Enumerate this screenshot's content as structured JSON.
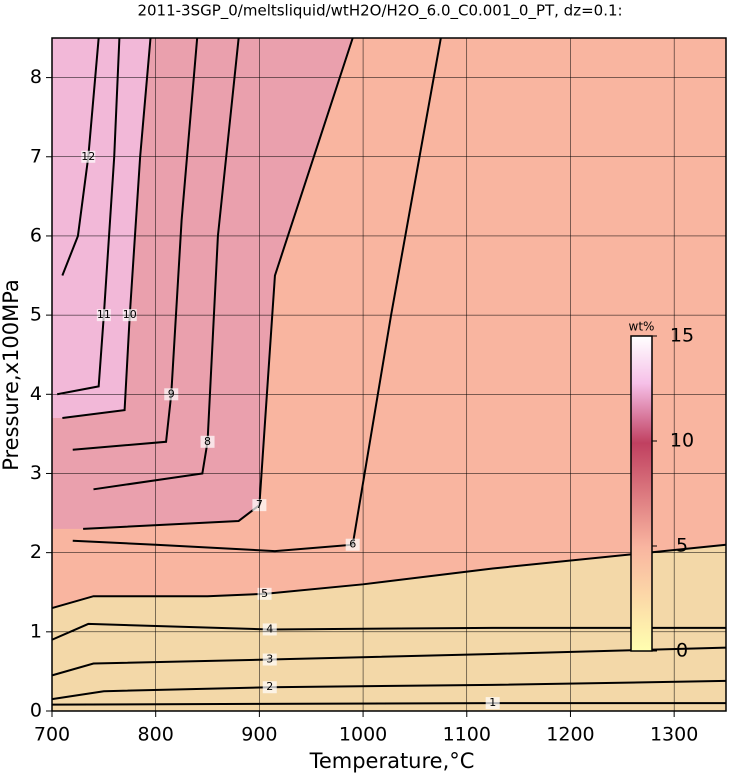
{
  "chart_data": {
    "type": "contour",
    "title": "2011-3SGP_0/meltsliquid/wtH2O/H2O_6.0_C0.001_0_PT, dz=0.1:",
    "x_label": "Temperature,°C",
    "y_label": "Pressure,x100MPa",
    "xlim": [
      700,
      1350
    ],
    "ylim": [
      0,
      8.5
    ],
    "xticks": [
      700,
      800,
      900,
      1000,
      1100,
      1200,
      1300
    ],
    "yticks": [
      0,
      1,
      2,
      3,
      4,
      5,
      6,
      7,
      8
    ],
    "grid": true,
    "contours": [
      {
        "level": 1,
        "x": [
          700,
          900,
          1125,
          1350
        ],
        "y": [
          0.08,
          0.09,
          0.1,
          0.1
        ]
      },
      {
        "level": 2,
        "x": [
          700,
          750,
          910,
          1125,
          1350
        ],
        "y": [
          0.15,
          0.25,
          0.3,
          0.33,
          0.38
        ]
      },
      {
        "level": 3,
        "x": [
          700,
          740,
          910,
          1125,
          1350
        ],
        "y": [
          0.45,
          0.6,
          0.65,
          0.72,
          0.8
        ]
      },
      {
        "level": 4,
        "x": [
          700,
          735,
          910,
          1125,
          1350
        ],
        "y": [
          0.9,
          1.1,
          1.03,
          1.05,
          1.05
        ]
      },
      {
        "level": 5,
        "x": [
          700,
          740,
          850,
          905,
          1000,
          1125,
          1350
        ],
        "y": [
          1.3,
          1.45,
          1.45,
          1.48,
          1.6,
          1.8,
          2.1
        ]
      },
      {
        "level": 6,
        "x": [
          720,
          800,
          915,
          990,
          1027,
          1075
        ],
        "y": [
          2.15,
          2.1,
          2.02,
          2.1,
          5.0,
          8.5
        ]
      },
      {
        "level": 7,
        "x": [
          730,
          880,
          900,
          915,
          990
        ],
        "y": [
          2.3,
          2.4,
          2.6,
          5.5,
          8.5
        ]
      },
      {
        "level": 8,
        "x": [
          740,
          845,
          850,
          860,
          880
        ],
        "y": [
          2.8,
          3.0,
          3.4,
          6.0,
          8.5
        ]
      },
      {
        "level": 9,
        "x": [
          720,
          810,
          815,
          825,
          840
        ],
        "y": [
          3.3,
          3.4,
          4.0,
          6.2,
          8.5
        ]
      },
      {
        "level": 10,
        "x": [
          710,
          770,
          775,
          785,
          795
        ],
        "y": [
          3.7,
          3.8,
          5.0,
          7.0,
          8.5
        ]
      },
      {
        "level": 11,
        "x": [
          705,
          745,
          750,
          760,
          765
        ],
        "y": [
          4.0,
          4.1,
          5.0,
          7.0,
          8.5
        ]
      },
      {
        "level": 12,
        "x": [
          710,
          725,
          735,
          745
        ],
        "y": [
          5.5,
          6.0,
          7.0,
          8.5
        ]
      }
    ],
    "colorbar": {
      "label": "wt%",
      "lim": [
        0,
        15
      ],
      "ticks": [
        0,
        5,
        10,
        15
      ]
    }
  }
}
